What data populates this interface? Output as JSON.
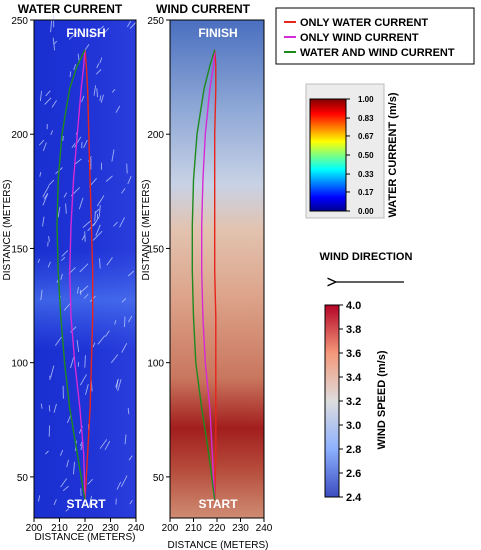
{
  "chart_data": [
    {
      "type": "line",
      "title": "WATER CURRENT",
      "xlabel": "DISTANCE (METERS)",
      "ylabel": "DISTANCE (METERS)",
      "xlim": [
        200,
        240
      ],
      "ylim": [
        32,
        250
      ],
      "xticks": [
        200,
        210,
        220,
        230,
        240
      ],
      "yticks": [
        50,
        100,
        150,
        200,
        250
      ],
      "annotations": [
        "FINISH",
        "START"
      ],
      "background": "water current speed field",
      "series": [
        {
          "name": "ONLY WATER CURRENT",
          "color": "#e8241c",
          "x": [
            220.0,
            221.0,
            222.0,
            222.5,
            223.0,
            223.0,
            222.5,
            222.0,
            221.5,
            221.0,
            220.5,
            220.0
          ],
          "y": [
            40,
            60,
            80,
            100,
            120,
            140,
            160,
            180,
            200,
            220,
            230,
            237
          ]
        },
        {
          "name": "ONLY WIND CURRENT",
          "color": "#d62ad6",
          "x": [
            220.0,
            219.5,
            218.0,
            216.0,
            214.5,
            214.0,
            214.5,
            215.5,
            217.0,
            218.5,
            219.5,
            220.0
          ],
          "y": [
            40,
            60,
            80,
            100,
            120,
            140,
            160,
            180,
            200,
            220,
            230,
            237
          ]
        },
        {
          "name": "WATER AND WIND CURRENT",
          "color": "#1d8a1d",
          "x": [
            220.0,
            217.0,
            214.0,
            212.0,
            210.5,
            209.5,
            209.0,
            209.5,
            211.0,
            214.0,
            217.0,
            220.0
          ],
          "y": [
            40,
            60,
            80,
            100,
            120,
            140,
            160,
            180,
            200,
            220,
            230,
            237
          ]
        }
      ]
    },
    {
      "type": "line",
      "title": "WIND CURRENT",
      "xlabel": "DISTANCE (METERS)",
      "ylabel": "DISTANCE (METERS)",
      "xlim": [
        200,
        240
      ],
      "ylim": [
        32,
        250
      ],
      "xticks": [
        200,
        210,
        220,
        230,
        240
      ],
      "yticks": [
        50,
        100,
        150,
        200,
        250
      ],
      "annotations": [
        "FINISH",
        "START"
      ],
      "background": "wind speed field",
      "series": [
        {
          "name": "ONLY WATER CURRENT",
          "color": "#e8241c",
          "x": [
            219.0,
            219.5,
            219.5,
            219.5,
            219.5,
            219.0,
            219.0,
            219.0,
            219.0,
            219.5,
            219.5,
            219.0
          ],
          "y": [
            40,
            60,
            80,
            100,
            120,
            140,
            160,
            180,
            200,
            220,
            230,
            237
          ]
        },
        {
          "name": "ONLY WIND CURRENT",
          "color": "#d62ad6",
          "x": [
            219.0,
            218.0,
            217.0,
            215.0,
            214.0,
            213.5,
            213.5,
            214.0,
            215.0,
            217.0,
            218.5,
            219.0
          ],
          "y": [
            40,
            60,
            80,
            100,
            120,
            140,
            160,
            180,
            200,
            220,
            230,
            237
          ]
        },
        {
          "name": "WATER AND WIND CURRENT",
          "color": "#1d8a1d",
          "x": [
            219.0,
            216.5,
            213.5,
            211.0,
            210.0,
            209.5,
            209.5,
            210.0,
            211.5,
            214.5,
            217.0,
            219.0
          ],
          "y": [
            40,
            60,
            80,
            100,
            120,
            140,
            160,
            180,
            200,
            220,
            230,
            237
          ]
        }
      ]
    }
  ],
  "legend": {
    "placement": "top-right",
    "entries": [
      {
        "label": "ONLY WATER CURRENT",
        "color": "#e8241c"
      },
      {
        "label": "ONLY WIND CURRENT",
        "color": "#d62ad6"
      },
      {
        "label": "WATER AND WIND CURRENT",
        "color": "#1d8a1d"
      }
    ]
  },
  "colorbar_water": {
    "label": "WATER CURRENT (m/s)",
    "range": [
      0,
      1
    ],
    "ticks": [
      "1.00",
      "0.83",
      "0.67",
      "0.50",
      "0.33",
      "0.17",
      "0.00"
    ]
  },
  "wind_direction": {
    "label": "WIND DIRECTION",
    "direction": "left"
  },
  "colorbar_wind": {
    "label": "WIND SPEED (m/s)",
    "range": [
      2.4,
      4.0
    ],
    "ticks": [
      "4.0",
      "3.8",
      "3.6",
      "3.4",
      "3.2",
      "3.0",
      "2.8",
      "2.6",
      "2.4"
    ]
  }
}
